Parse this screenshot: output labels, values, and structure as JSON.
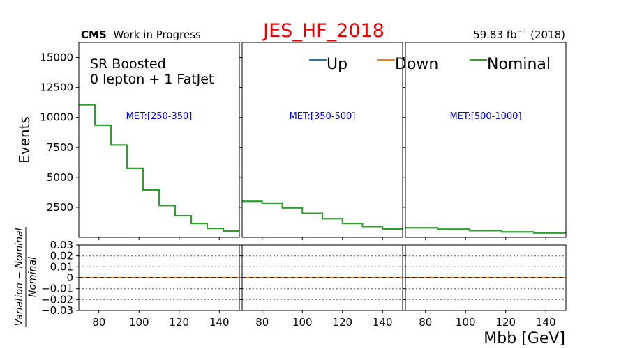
{
  "header": {
    "title": "JES_HF_2018",
    "title_color": "#ee0000",
    "cms_bold": "CMS",
    "cms_rest": "Work in Progress",
    "lumi_prefix": "59.83 fb",
    "lumi_exp": "−1",
    "lumi_suffix": " (2018)"
  },
  "annotations": {
    "region": "SR Boosted",
    "selection": "0 lepton + 1 FatJet"
  },
  "legend": [
    {
      "label": "Up",
      "color": "#1f77b4"
    },
    {
      "label": "Down",
      "color": "#ff7f0e"
    },
    {
      "label": "Nominal",
      "color": "#2ca02c"
    }
  ],
  "axes": {
    "xlabel": "Mbb [GeV]",
    "ylabel_top": "Events",
    "ylabel_ratio_num": "Variation − Nominal",
    "ylabel_ratio_den": "Nominal"
  },
  "chart_data": {
    "type": "line",
    "style": "step histogram",
    "xlim": [
      70,
      150
    ],
    "ylim_top": [
      0,
      16250
    ],
    "ylim_ratio": [
      -0.03,
      0.03
    ],
    "x_ticks": [
      80,
      100,
      120,
      140
    ],
    "y_ticks_top": [
      2500,
      5000,
      7500,
      10000,
      12500,
      15000
    ],
    "y_ticks_ratio": [
      {
        "v": 0.03,
        "label": "0.03"
      },
      {
        "v": 0.02,
        "label": "0.02"
      },
      {
        "v": 0.01,
        "label": "0.01"
      },
      {
        "v": 0,
        "label": "0"
      },
      {
        "v": -0.01,
        "label": "−0.01"
      },
      {
        "v": -0.02,
        "label": "−0.02"
      },
      {
        "v": -0.03,
        "label": "−0.03"
      }
    ],
    "ratio_gridlines": [
      0.02,
      0.01,
      -0.01,
      -0.02
    ],
    "panels": [
      {
        "label": "MET:[250-350]",
        "bin_edges": [
          70,
          78,
          86,
          94,
          102,
          110,
          118,
          126,
          134,
          142,
          150
        ],
        "nominal": [
          11050,
          9350,
          7700,
          5750,
          3950,
          2650,
          1800,
          1150,
          750,
          520
        ],
        "up_ratio": [
          0,
          0,
          0,
          0,
          0,
          0,
          0,
          0,
          0,
          0
        ],
        "down_ratio": [
          0,
          0,
          0,
          0,
          0,
          0,
          0,
          0,
          0,
          0
        ]
      },
      {
        "label": "MET:[350-500]",
        "bin_edges": [
          70,
          80,
          90,
          100,
          110,
          120,
          130,
          140,
          150
        ],
        "nominal": [
          3000,
          2850,
          2450,
          2000,
          1550,
          1150,
          900,
          700
        ],
        "up_ratio": [
          0,
          0,
          0,
          0,
          0,
          0,
          0,
          0
        ],
        "down_ratio": [
          0,
          0,
          0,
          0,
          0,
          0,
          0,
          0
        ]
      },
      {
        "label": "MET:[500-1000]",
        "bin_edges": [
          70,
          86,
          102,
          118,
          134,
          150
        ],
        "nominal": [
          800,
          680,
          550,
          450,
          360
        ],
        "up_ratio": [
          0,
          0,
          0,
          0,
          0
        ],
        "down_ratio": [
          0,
          0,
          0,
          0,
          0
        ]
      }
    ]
  }
}
